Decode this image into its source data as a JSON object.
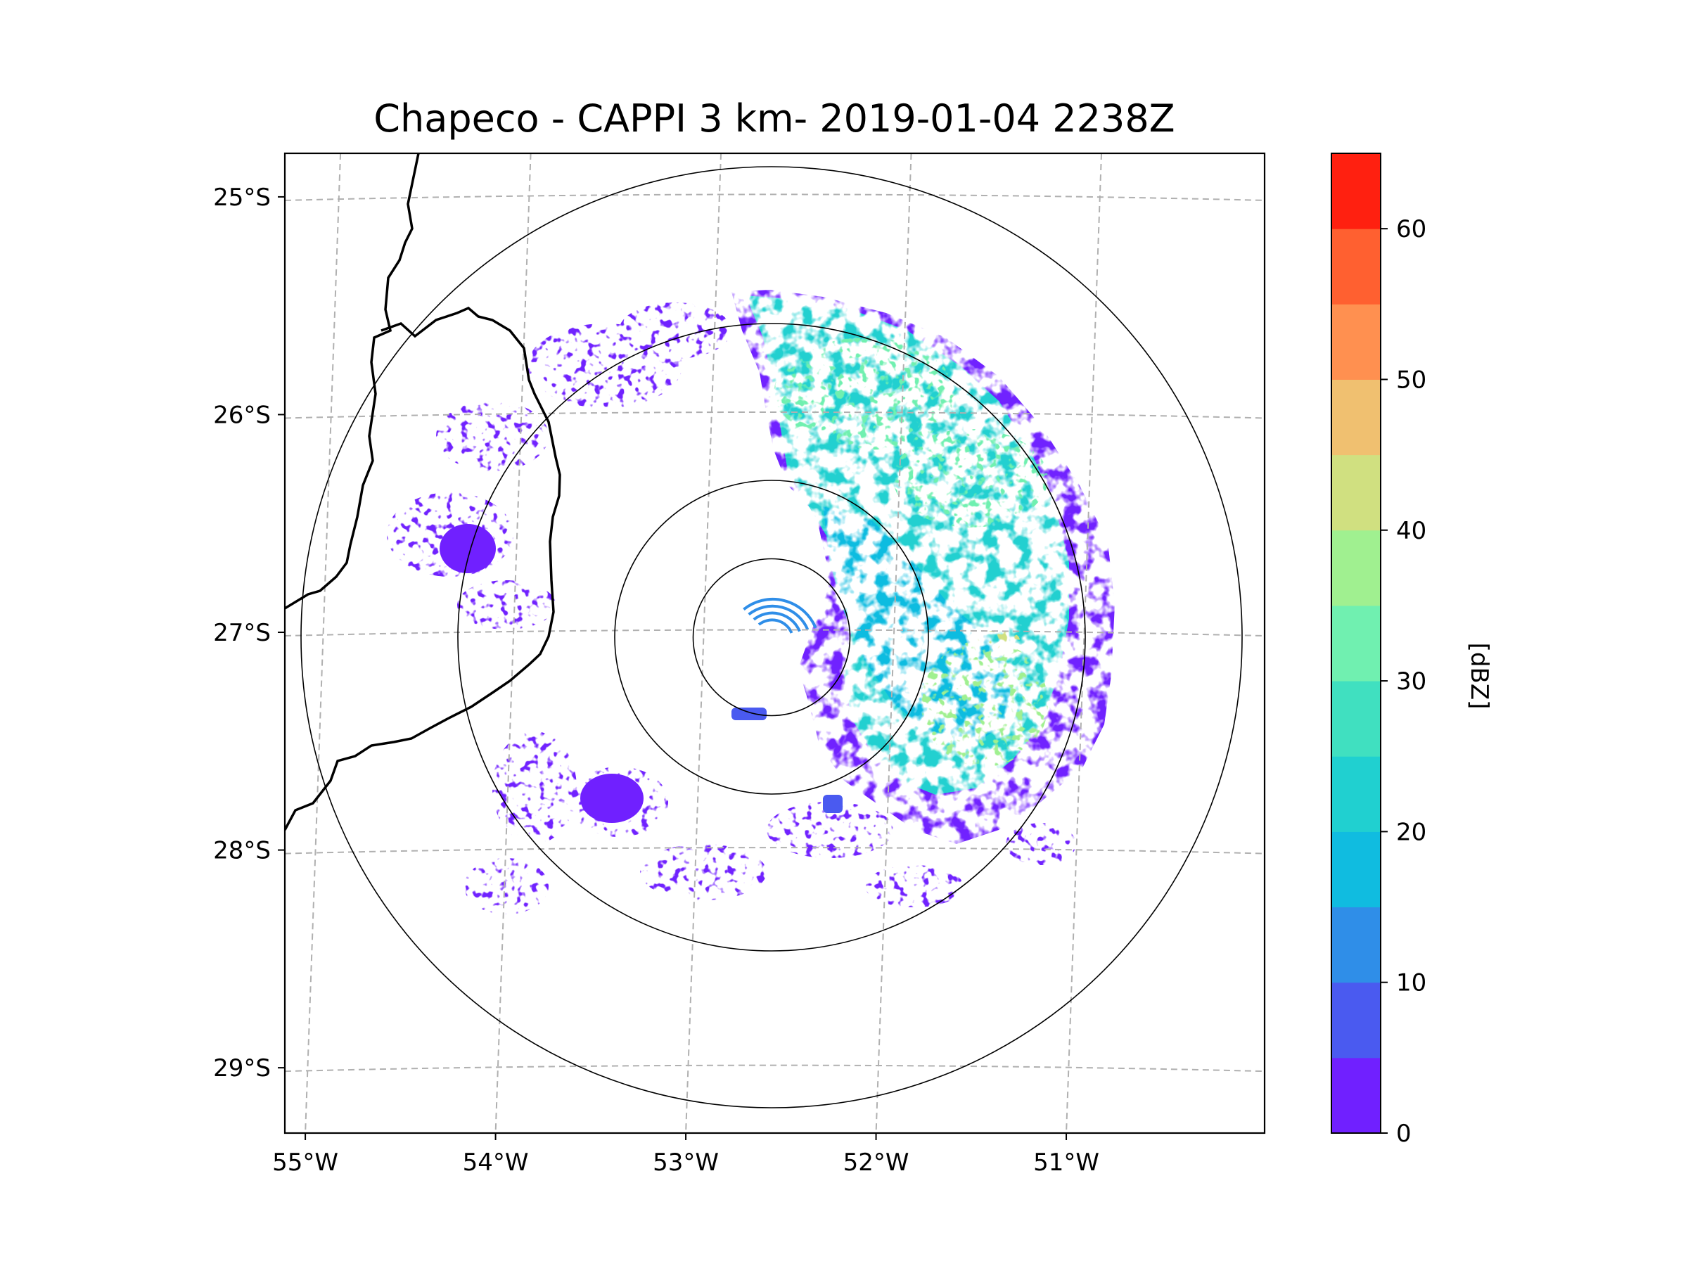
{
  "chart_data": {
    "type": "heatmap",
    "title": "Chapeco - CAPPI 3 km- 2019-01-04 2238Z",
    "radar_site": "Chapeco",
    "product": "CAPPI 3 km",
    "datetime": "2019-01-04 2238Z",
    "xlabel": "",
    "ylabel": "",
    "grid": true,
    "x_ticks": [
      {
        "value": -55,
        "label": "55°W"
      },
      {
        "value": -54,
        "label": "54°W"
      },
      {
        "value": -53,
        "label": "53°W"
      },
      {
        "value": -52,
        "label": "52°W"
      },
      {
        "value": -51,
        "label": "51°W"
      }
    ],
    "y_ticks": [
      {
        "value": -25,
        "label": "25°S"
      },
      {
        "value": -26,
        "label": "26°S"
      },
      {
        "value": -27,
        "label": "27°S"
      },
      {
        "value": -28,
        "label": "28°S"
      },
      {
        "value": -29,
        "label": "29°S"
      }
    ],
    "xlim": [
      -55.2,
      -50.05
    ],
    "ylim": [
      -29.3,
      -24.8
    ],
    "range_rings_km": [
      50,
      100,
      200,
      300
    ],
    "colorbar": {
      "label": "[dBZ]",
      "min": 0,
      "max": 65,
      "step": 5,
      "ticks": [
        0,
        10,
        20,
        30,
        40,
        50,
        60
      ],
      "colors": [
        "#7020ff",
        "#4a5af0",
        "#2f8ee8",
        "#10bce0",
        "#20d0d0",
        "#40e0c0",
        "#70f0b0",
        "#a0f090",
        "#d0e080",
        "#f0c070",
        "#ff9050",
        "#ff6030",
        "#ff2010"
      ]
    },
    "echo_summary": [
      {
        "region": "northeast quadrant, within ~250 km",
        "dbz_range": [
          15,
          30
        ]
      },
      {
        "region": "east-southeast, around 27.0°S 51.5°W",
        "dbz_range": [
          25,
          40
        ]
      },
      {
        "region": "scattered west and south",
        "dbz_range": [
          0,
          10
        ]
      }
    ]
  }
}
